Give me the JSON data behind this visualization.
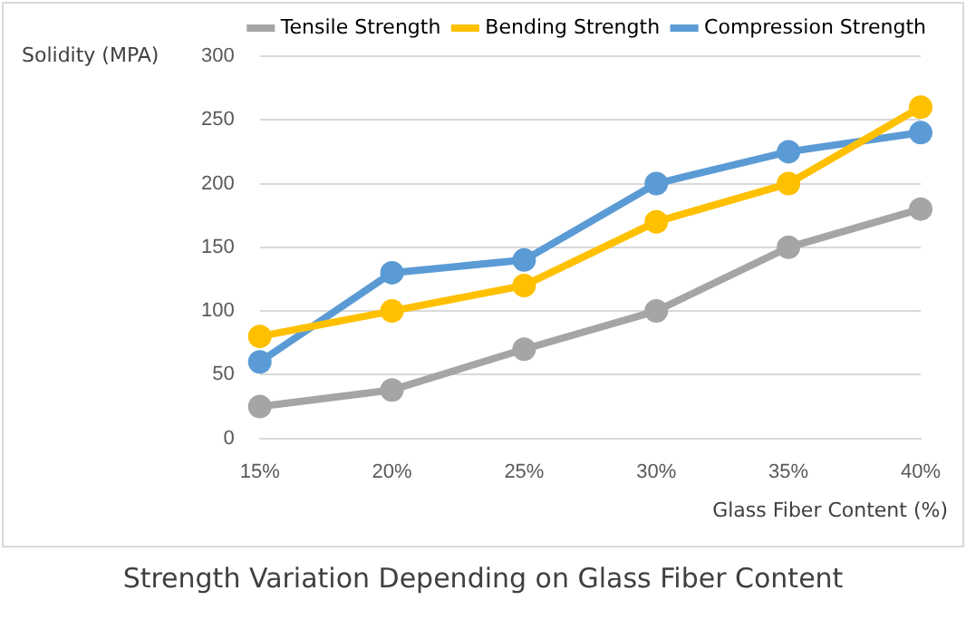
{
  "chart_data": {
    "type": "line",
    "title": "Strength Variation Depending on Glass Fiber Content",
    "xlabel": "Glass Fiber Content (%)",
    "ylabel": "Solidity (MPA)",
    "categories": [
      "15%",
      "20%",
      "25%",
      "30%",
      "35%",
      "40%"
    ],
    "series": [
      {
        "name": "Tensile Strength",
        "color": "#a5a5a5",
        "values": [
          25,
          38,
          70,
          100,
          150,
          180
        ]
      },
      {
        "name": "Bending Strength",
        "color": "#ffc000",
        "values": [
          80,
          100,
          120,
          170,
          200,
          260
        ]
      },
      {
        "name": "Compression Strength",
        "color": "#5b9bd5",
        "values": [
          60,
          130,
          140,
          200,
          225,
          240
        ]
      }
    ],
    "ylim": [
      0,
      300
    ],
    "yticks": [
      0,
      50,
      100,
      150,
      200,
      250,
      300
    ],
    "grid": "y",
    "legend": "top right",
    "marker": "circle",
    "line_style": "solid"
  }
}
